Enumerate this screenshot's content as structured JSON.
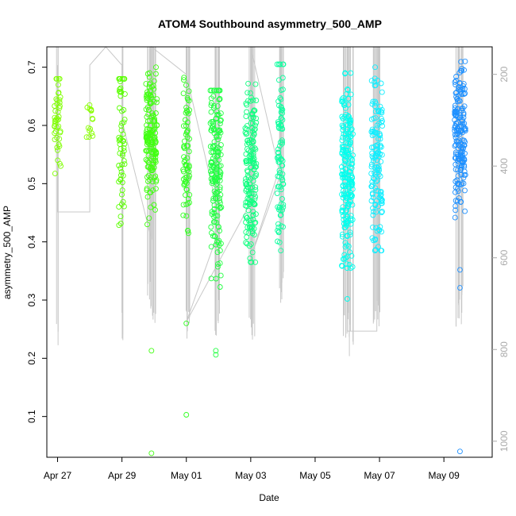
{
  "chart_data": {
    "type": "scatter",
    "title": "ATOM4 Southbound asymmetry_500_AMP",
    "xlabel": "Date",
    "ylabel": "asymmetry_500_AMP",
    "x_ticks": [
      "Apr 27",
      "Apr 29",
      "May 01",
      "May 03",
      "May 05",
      "May 07",
      "May 09"
    ],
    "x_range": [
      "2024-04-26T16:00",
      "2024-05-10T12:00"
    ],
    "y_ticks": [
      0.1,
      0.2,
      0.3,
      0.4,
      0.5,
      0.6,
      0.7
    ],
    "ylim": [
      0.03,
      0.735
    ],
    "secondary_y": {
      "ticks": [
        200,
        400,
        600,
        800,
        1000
      ],
      "lim": [
        1035,
        140
      ],
      "color": "#aaaaaa"
    },
    "marker": "open circle",
    "color_scale": "green to cyan to blue over time",
    "grid": false,
    "clusters": [
      {
        "date": "2024-04-27T00:00",
        "color": "#7fff00",
        "center": 0.61,
        "spread": 0.045,
        "n": 45,
        "min": 0.51,
        "max": 0.68,
        "outliers": []
      },
      {
        "date": "2024-04-28T00:00",
        "color": "#88ff00",
        "center": 0.605,
        "spread": 0.02,
        "n": 15,
        "min": 0.58,
        "max": 0.65,
        "outliers": []
      },
      {
        "date": "2024-04-29T00:00",
        "color": "#5aff00",
        "center": 0.57,
        "spread": 0.08,
        "n": 60,
        "min": 0.39,
        "max": 0.68,
        "outliers": []
      },
      {
        "date": "2024-04-29T22:00",
        "color": "#40ff10",
        "center": 0.58,
        "spread": 0.055,
        "n": 160,
        "min": 0.43,
        "max": 0.7,
        "outliers": [
          0.213,
          0.037
        ]
      },
      {
        "date": "2024-05-01T00:00",
        "color": "#30ff20",
        "center": 0.55,
        "spread": 0.07,
        "n": 70,
        "min": 0.41,
        "max": 0.69,
        "outliers": [
          0.26,
          0.103
        ]
      },
      {
        "date": "2024-05-01T22:00",
        "color": "#20ff40",
        "center": 0.51,
        "spread": 0.085,
        "n": 170,
        "min": 0.29,
        "max": 0.66,
        "outliers": [
          0.213,
          0.206
        ]
      },
      {
        "date": "2024-05-03T00:00",
        "color": "#10ff80",
        "center": 0.52,
        "spread": 0.075,
        "n": 170,
        "min": 0.365,
        "max": 0.68,
        "outliers": []
      },
      {
        "date": "2024-05-03T22:00",
        "color": "#10ffa0",
        "center": 0.56,
        "spread": 0.08,
        "n": 90,
        "min": 0.385,
        "max": 0.705,
        "outliers": []
      },
      {
        "date": "2024-05-06T00:00",
        "color": "#00ffee",
        "center": 0.52,
        "spread": 0.08,
        "n": 210,
        "min": 0.355,
        "max": 0.69,
        "outliers": [
          0.302
        ]
      },
      {
        "date": "2024-05-06T22:00",
        "color": "#10eeff",
        "center": 0.535,
        "spread": 0.075,
        "n": 140,
        "min": 0.385,
        "max": 0.7,
        "outliers": []
      },
      {
        "date": "2024-05-09T12:00",
        "color": "#1e90ff",
        "center": 0.585,
        "spread": 0.055,
        "n": 180,
        "min": 0.41,
        "max": 0.71,
        "outliers": [
          0.352,
          0.321,
          0.04
        ]
      }
    ],
    "depth_trace": {
      "color": "#c8c8c8",
      "path": [
        [
          "2024-04-27T00:00",
          180
        ],
        [
          "2024-04-27T00:00",
          500
        ],
        [
          "2024-04-28T00:00",
          500
        ],
        [
          "2024-04-28T00:00",
          180
        ],
        [
          "2024-04-28T12:00",
          140
        ],
        [
          "2024-04-29T00:00",
          180
        ],
        [
          "2024-04-29T00:00",
          720
        ],
        [
          "2024-04-29T00:00",
          300
        ],
        [
          "2024-04-29T22:00",
          560
        ],
        [
          "2024-04-29T22:00",
          140
        ],
        [
          "2024-05-01T00:00",
          200
        ],
        [
          "2024-05-01T22:00",
          480
        ],
        [
          "2024-05-01T22:00",
          140
        ],
        [
          "2024-05-01T22:00",
          560
        ],
        [
          "2024-05-01T00:00",
          740
        ],
        [
          "2024-05-03T00:00",
          480
        ],
        [
          "2024-05-03T00:00",
          140
        ],
        [
          "2024-05-03T22:00",
          420
        ],
        [
          "2024-05-03T00:00",
          600
        ],
        [
          "2024-05-03T22:00",
          400
        ],
        [
          "2024-05-03T22:00",
          140
        ],
        [
          "2024-05-06T00:00",
          140
        ],
        [
          "2024-05-06T00:00",
          760
        ],
        [
          "2024-05-06T22:00",
          760
        ],
        [
          "2024-05-06T22:00",
          140
        ]
      ],
      "casts": [
        {
          "date": "2024-04-27T00:00",
          "bottom": 815
        },
        {
          "date": "2024-04-29T00:00",
          "bottom": 795
        },
        {
          "date": "2024-04-29T20:00",
          "bottom": 720
        },
        {
          "date": "2024-04-29T22:00",
          "bottom": 740
        },
        {
          "date": "2024-04-30T00:00",
          "bottom": 760
        },
        {
          "date": "2024-05-01T00:00",
          "bottom": 785
        },
        {
          "date": "2024-05-01T02:00",
          "bottom": 750
        },
        {
          "date": "2024-05-01T22:00",
          "bottom": 770
        },
        {
          "date": "2024-05-02T00:00",
          "bottom": 760
        },
        {
          "date": "2024-05-03T00:00",
          "bottom": 775
        },
        {
          "date": "2024-05-03T02:00",
          "bottom": 820
        },
        {
          "date": "2024-05-03T22:00",
          "bottom": 730
        },
        {
          "date": "2024-05-04T00:00",
          "bottom": 700
        },
        {
          "date": "2024-05-05T22:00",
          "bottom": 790
        },
        {
          "date": "2024-05-06T00:00",
          "bottom": 800
        },
        {
          "date": "2024-05-06T02:00",
          "bottom": 815
        },
        {
          "date": "2024-05-06T04:00",
          "bottom": 800
        },
        {
          "date": "2024-05-06T20:00",
          "bottom": 770
        },
        {
          "date": "2024-05-06T22:00",
          "bottom": 760
        },
        {
          "date": "2024-05-07T00:00",
          "bottom": 750
        },
        {
          "date": "2024-05-09T10:00",
          "bottom": 760
        },
        {
          "date": "2024-05-09T12:00",
          "bottom": 770
        },
        {
          "date": "2024-05-09T14:00",
          "bottom": 740
        }
      ]
    }
  }
}
